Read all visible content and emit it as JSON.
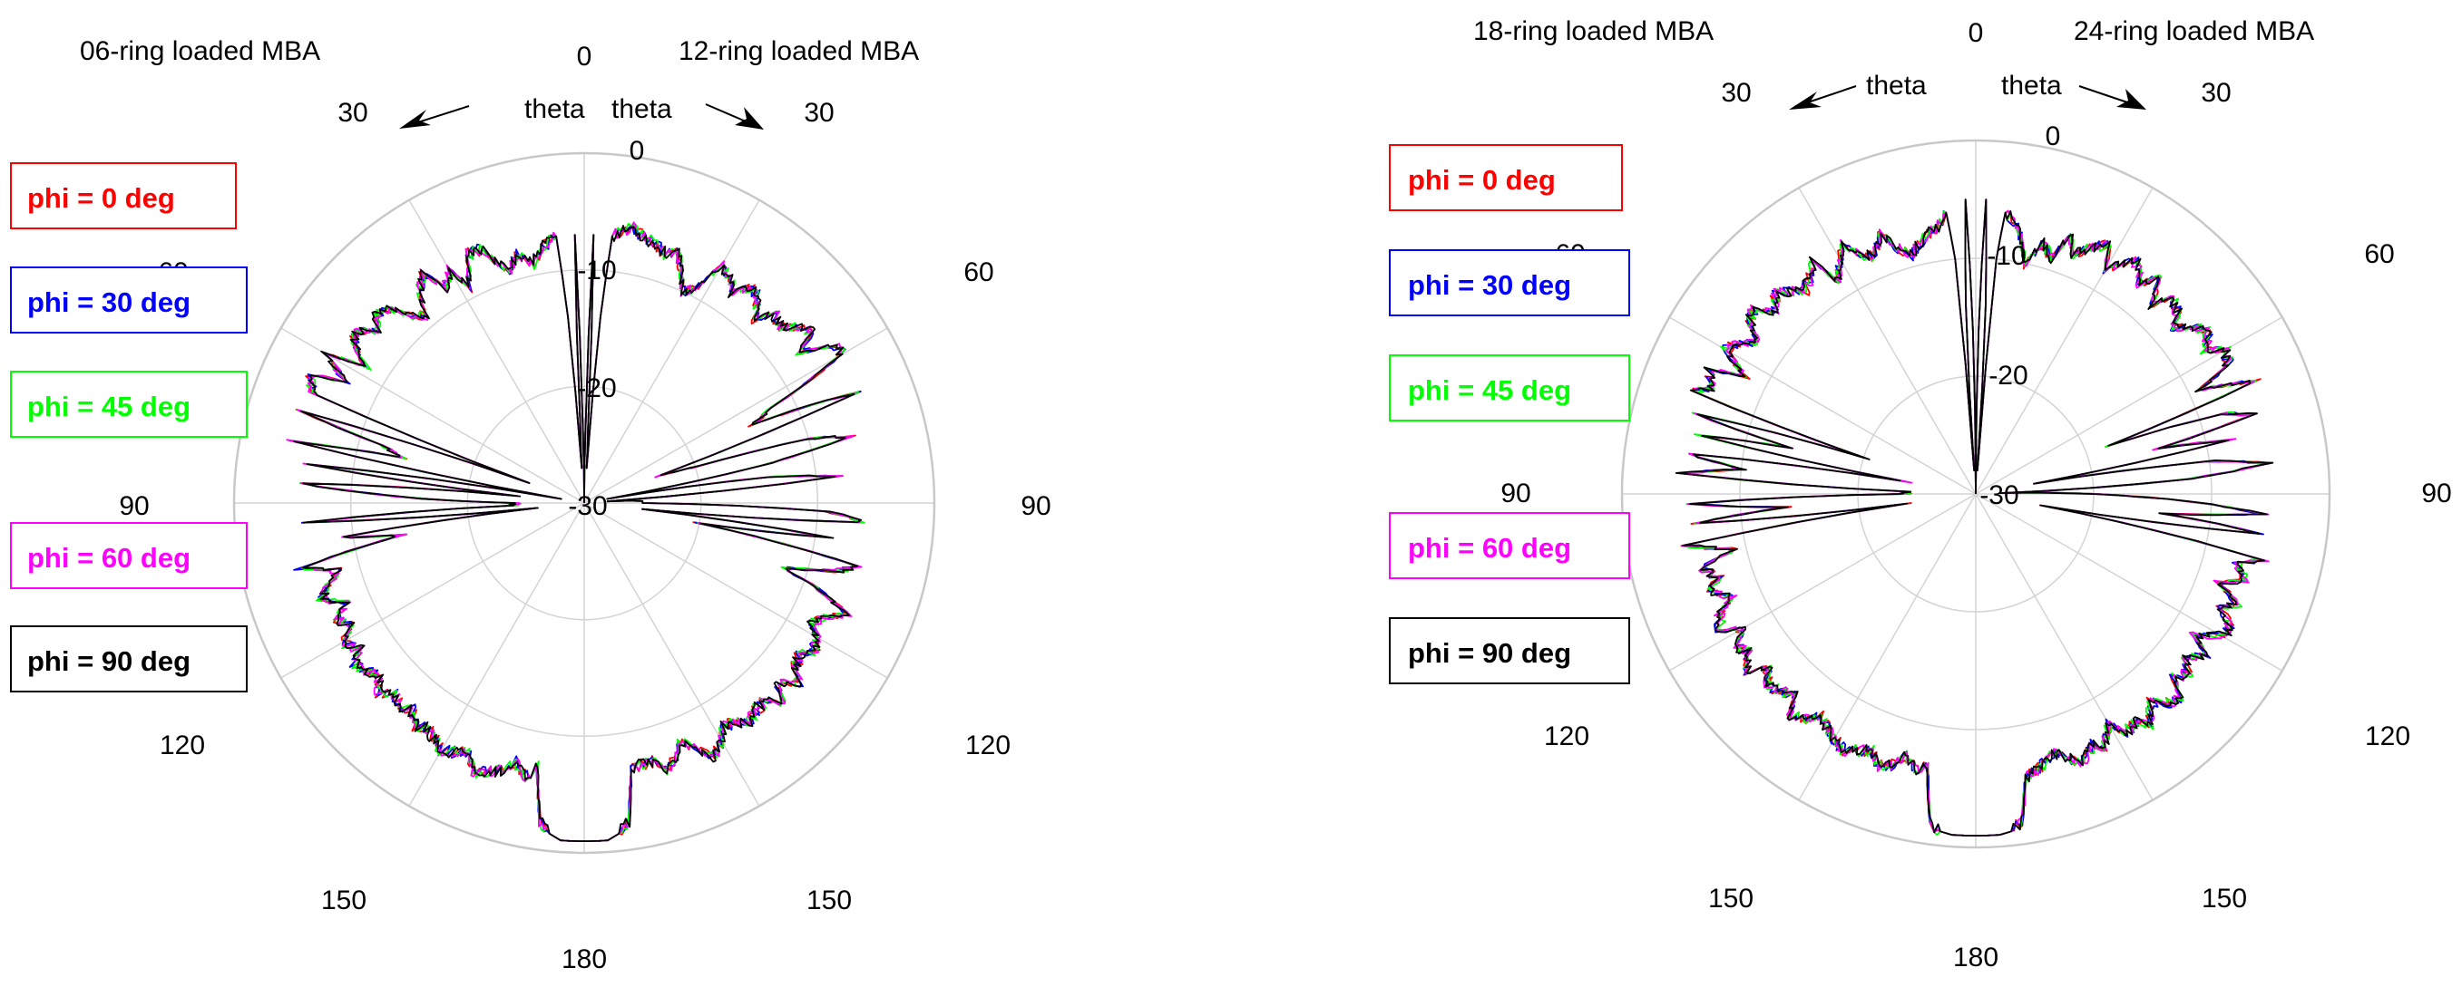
{
  "figure": {
    "background": "#ffffff",
    "grid_color": "#d4d4d4",
    "rim_color": "#c8c8c8"
  },
  "series_styles": [
    {
      "name": "phi = 0  deg",
      "color": "#ff0000"
    },
    {
      "name": "phi = 30 deg",
      "color": "#0000ff"
    },
    {
      "name": "phi = 45 deg",
      "color": "#00ff00"
    },
    {
      "name": "phi = 60 deg",
      "color": "#ff00ff"
    },
    {
      "name": "phi = 90 deg",
      "color": "#000000"
    }
  ],
  "chart_data": [
    {
      "type": "polar_line",
      "side": "left",
      "left_title": "06-ring loaded MBA",
      "right_title": "12-ring loaded MBA",
      "theta_arrow_labels": [
        "theta",
        "theta"
      ],
      "angle_labels": [
        "0",
        "30",
        "60",
        "90",
        "120",
        "150",
        "180",
        "150",
        "120",
        "90",
        "60",
        "30"
      ],
      "radial_range_db": [
        -30,
        0
      ],
      "radial_ticks": [
        {
          "value": 0,
          "label": "0"
        },
        {
          "value": -10,
          "label": "-10"
        },
        {
          "value": -20,
          "label": "-20"
        }
      ],
      "null_level_label": "-30",
      "legend": [
        "phi = 0  deg",
        "phi = 30 deg",
        "phi = 45 deg",
        "phi = 60 deg",
        "phi = 90 deg"
      ],
      "series": [
        {
          "name": "phi = 0  deg",
          "color": "#ff0000",
          "seed": 11
        },
        {
          "name": "phi = 30 deg",
          "color": "#0000ff",
          "seed": 23
        },
        {
          "name": "phi = 45 deg",
          "color": "#00ff00",
          "seed": 37
        },
        {
          "name": "phi = 60 deg",
          "color": "#ff00ff",
          "seed": 41
        },
        {
          "name": "phi = 90 deg",
          "color": "#000000",
          "seed": 53
        }
      ],
      "pattern_db": {
        "theta_deg": [
          0,
          1,
          2,
          3,
          4,
          5,
          6,
          8,
          10,
          12,
          15,
          18,
          20,
          22,
          25,
          28,
          30,
          33,
          35,
          38,
          40,
          43,
          45,
          48,
          50,
          53,
          55,
          58,
          60,
          63,
          65,
          68,
          70,
          72,
          74,
          76,
          78,
          80,
          82,
          84,
          86,
          88,
          90,
          92,
          94,
          96,
          98,
          100,
          103,
          105,
          108,
          110,
          113,
          115,
          118,
          120,
          123,
          125,
          128,
          130,
          133,
          135,
          138,
          140,
          143,
          145,
          148,
          150,
          153,
          155,
          158,
          160,
          163,
          165,
          168,
          170,
          172,
          174,
          176,
          178,
          180
        ],
        "right_half_db": [
          -30,
          -24,
          -7,
          -24,
          -27,
          -14,
          -7,
          -6.5,
          -6,
          -6.5,
          -7,
          -7.5,
          -7,
          -8,
          -10,
          -9,
          -6.5,
          -7,
          -8,
          -6.5,
          -7,
          -8.5,
          -7,
          -7.5,
          -6.5,
          -5.5,
          -7.5,
          -4.5,
          -4.5,
          -12,
          -14,
          -4.7,
          -23,
          -20,
          -10,
          -6.5,
          -14,
          -28,
          -14,
          -8,
          -28,
          -25,
          -25,
          -9,
          -6,
          -25,
          -9,
          -20,
          -6,
          -7.5,
          -12,
          -9,
          -5.5,
          -7,
          -8,
          -7,
          -6.5,
          -7.5,
          -7,
          -6,
          -7.5,
          -6,
          -7,
          -7,
          -6.5,
          -7,
          -7.5,
          -6.5,
          -5.5,
          -6.5,
          -8,
          -7,
          -6,
          -7,
          -7,
          -7,
          -2.5,
          -1.5,
          -1,
          -1,
          -1
        ],
        "left_half_db": [
          -30,
          -24,
          -7,
          -24,
          -27,
          -14,
          -7,
          -7.5,
          -8,
          -9,
          -8,
          -9,
          -8,
          -6.5,
          -6.5,
          -9,
          -7,
          -8,
          -6,
          -7,
          -9,
          -8,
          -6.5,
          -6,
          -7,
          -5.5,
          -6,
          -8,
          -4.5,
          -7,
          -4,
          -5,
          -25,
          -4.5,
          -12,
          -14,
          -4.5,
          -28,
          -6,
          -24,
          -5.5,
          -14,
          -24,
          -24,
          -6,
          -26,
          -9,
          -14,
          -5,
          -8,
          -7,
          -6,
          -8,
          -6.5,
          -7.5,
          -6,
          -7,
          -6,
          -6.5,
          -7,
          -6,
          -7,
          -6.5,
          -7,
          -6,
          -6.5,
          -6,
          -5.5,
          -6,
          -6.5,
          -5,
          -5.5,
          -6,
          -7,
          -6,
          -7,
          -2.5,
          -1.5,
          -1,
          -1,
          -1
        ]
      }
    },
    {
      "type": "polar_line",
      "side": "right",
      "left_title": "18-ring loaded MBA",
      "right_title": "24-ring loaded MBA",
      "theta_arrow_labels": [
        "theta",
        "theta"
      ],
      "angle_labels": [
        "0",
        "30",
        "60",
        "90",
        "120",
        "150",
        "180",
        "150",
        "120",
        "90",
        "60",
        "30"
      ],
      "radial_range_db": [
        -30,
        0
      ],
      "radial_ticks": [
        {
          "value": 0,
          "label": "0"
        },
        {
          "value": -10,
          "label": "-10"
        },
        {
          "value": -20,
          "label": "-20"
        }
      ],
      "null_level_label": "-30",
      "legend": [
        "phi = 0  deg",
        "phi = 30 deg",
        "phi = 45 deg",
        "phi = 60 deg",
        "phi = 90 deg"
      ],
      "series": [
        {
          "name": "phi = 0  deg",
          "color": "#ff0000",
          "seed": 67
        },
        {
          "name": "phi = 30 deg",
          "color": "#0000ff",
          "seed": 71
        },
        {
          "name": "phi = 45 deg",
          "color": "#00ff00",
          "seed": 83
        },
        {
          "name": "phi = 60 deg",
          "color": "#ff00ff",
          "seed": 97
        },
        {
          "name": "phi = 90 deg",
          "color": "#000000",
          "seed": 101
        }
      ],
      "pattern_db": {
        "theta_deg": [
          0,
          1,
          2,
          3,
          4,
          5,
          6,
          8,
          10,
          12,
          15,
          18,
          20,
          22,
          25,
          28,
          30,
          33,
          35,
          38,
          40,
          43,
          45,
          48,
          50,
          53,
          55,
          58,
          60,
          63,
          65,
          68,
          70,
          72,
          74,
          76,
          78,
          80,
          82,
          84,
          86,
          88,
          90,
          92,
          94,
          96,
          98,
          100,
          103,
          105,
          108,
          110,
          113,
          115,
          118,
          120,
          123,
          125,
          128,
          130,
          133,
          135,
          138,
          140,
          143,
          145,
          148,
          150,
          153,
          155,
          158,
          160,
          163,
          165,
          168,
          170,
          172,
          174,
          176,
          178,
          180
        ],
        "right_half_db": [
          -30,
          -16,
          -5,
          -14,
          -28,
          -10,
          -6,
          -6.5,
          -8,
          -10,
          -8,
          -9,
          -6.5,
          -8,
          -7,
          -6,
          -8,
          -6.5,
          -6,
          -7.5,
          -6,
          -8,
          -6.5,
          -7,
          -8,
          -6.5,
          -6,
          -7,
          -5.5,
          -6,
          -9,
          -4.5,
          -18,
          -8,
          -5.5,
          -14,
          -8,
          -25,
          -10,
          -5,
          -12,
          -28,
          -20,
          -12,
          -5.5,
          -14,
          -5.5,
          -24,
          -5,
          -7,
          -6,
          -8,
          -6,
          -7,
          -5.5,
          -6,
          -8,
          -6,
          -7.5,
          -6.5,
          -7,
          -5.5,
          -6,
          -7,
          -5.5,
          -6.5,
          -6,
          -7.5,
          -6,
          -6.5,
          -5.5,
          -6,
          -7,
          -6.5,
          -6,
          -5.5,
          -2,
          -1.2,
          -1,
          -1,
          -1
        ],
        "left_half_db": [
          -30,
          -16,
          -5,
          -14,
          -28,
          -10,
          -6,
          -7,
          -7.5,
          -8,
          -9,
          -8,
          -6.5,
          -7.5,
          -8,
          -6,
          -7,
          -8.5,
          -6,
          -7,
          -7.5,
          -6.5,
          -6,
          -7,
          -5.5,
          -6,
          -7.5,
          -6,
          -5.5,
          -8,
          -5,
          -6,
          -4.5,
          -20,
          -5,
          -14,
          -6,
          -24,
          -5.5,
          -10,
          -5,
          -24,
          -24,
          -5.5,
          -14,
          -6,
          -24,
          -5,
          -9,
          -6,
          -7,
          -6,
          -7.5,
          -6,
          -5.5,
          -7,
          -6,
          -6.5,
          -5.5,
          -7,
          -6,
          -6.5,
          -7,
          -5.5,
          -6,
          -7,
          -6.5,
          -6,
          -5.5,
          -6,
          -6.5,
          -5.5,
          -6,
          -7,
          -6,
          -6.5,
          -2,
          -1.2,
          -1,
          -1,
          -1
        ]
      }
    }
  ]
}
